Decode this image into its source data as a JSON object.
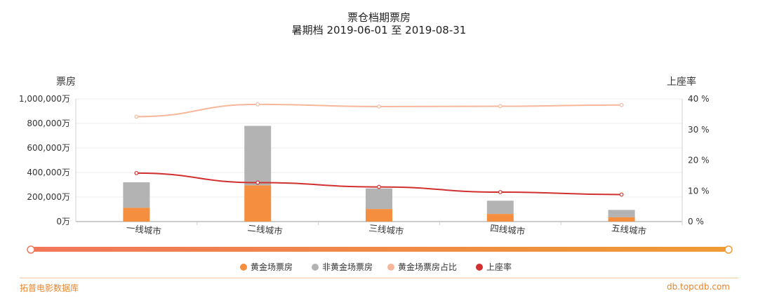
{
  "footer": {
    "brand": "拓普电影数据库",
    "url": "db.topcdb.com"
  },
  "colors": {
    "golden_bar": "#f58f3f",
    "non_golden_bar": "#b3b3b3",
    "share_line": "#f6b79b",
    "occupancy_line": "#d1302f",
    "slider_start": "#f2775a",
    "slider_end": "#ee9b34",
    "footer_accent": "#e8862e"
  },
  "chart_data": {
    "type": "bar",
    "title": "票仓档期票房",
    "subtitle": "暑期档 2019-06-01 至 2019-08-31",
    "ylabel": "票房",
    "y2label": "上座率",
    "ylim": [
      0,
      1000000
    ],
    "y2lim": [
      0,
      40
    ],
    "y_ticks": [
      "0万",
      "200,000万",
      "400,000万",
      "600,000万",
      "800,000万",
      "1,000,000万"
    ],
    "y2_ticks": [
      "0 %",
      "10 %",
      "20 %",
      "30 %",
      "40 %"
    ],
    "categories": [
      "一线城市",
      "二线城市",
      "三线城市",
      "四线城市",
      "五线城市"
    ],
    "series": [
      {
        "name": "黄金场票房",
        "kind": "bar",
        "stack": "box",
        "axis": "left",
        "values": [
          112000,
          295000,
          102000,
          62000,
          35000
        ]
      },
      {
        "name": "非黄金场票房",
        "kind": "bar",
        "stack": "box",
        "axis": "left",
        "values": [
          208000,
          485000,
          168000,
          108000,
          60000
        ]
      },
      {
        "name": "黄金场票房占比",
        "kind": "line",
        "axis": "right",
        "values": [
          34.2,
          38.2,
          37.5,
          37.6,
          38.0
        ]
      },
      {
        "name": "上座率",
        "kind": "line",
        "axis": "right",
        "values": [
          15.8,
          12.7,
          11.3,
          9.6,
          8.8
        ]
      }
    ],
    "grid": true,
    "legend_position": "bottom-center"
  }
}
